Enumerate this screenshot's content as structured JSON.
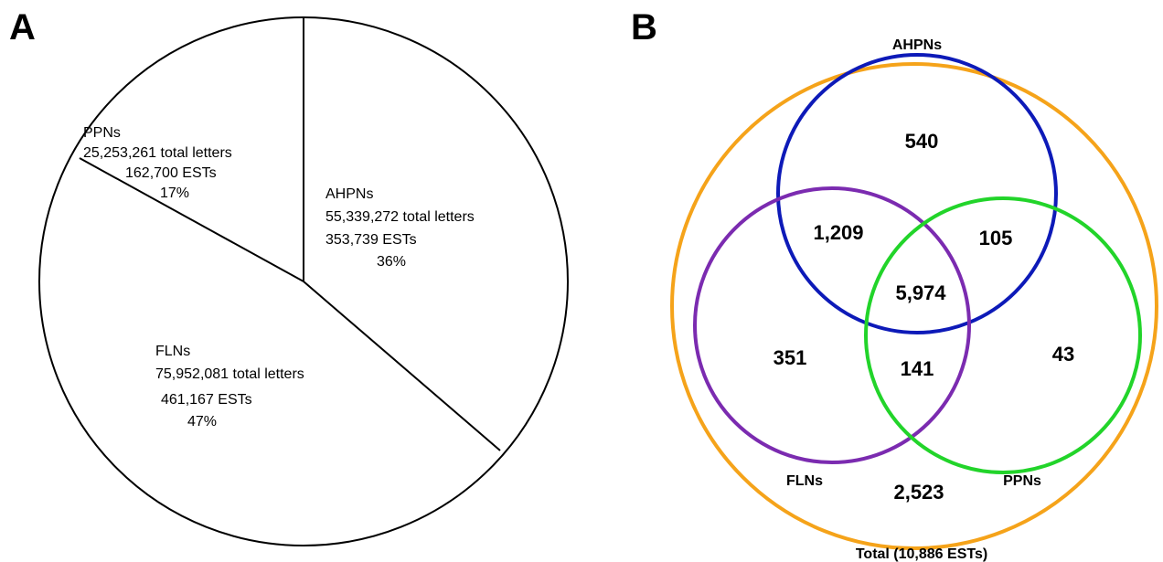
{
  "panels": {
    "a": "A",
    "b": "B"
  },
  "chart_data": [
    {
      "type": "pie",
      "panel": "A",
      "slices": [
        {
          "name": "AHPNs",
          "letters": "55,339,272 total letters",
          "ests": "353,739 ESTs",
          "percent": "36%",
          "value": 36
        },
        {
          "name": "FLNs",
          "letters": "75,952,081 total letters",
          "ests": "461,167 ESTs",
          "percent": "47%",
          "value": 47
        },
        {
          "name": "PPNs",
          "letters": "25,253,261 total letters",
          "ests": "162,700 ESTs",
          "percent": "17%",
          "value": 17
        }
      ]
    },
    {
      "type": "venn",
      "panel": "B",
      "sets": [
        {
          "name": "AHPNs",
          "color": "#0d1ab8"
        },
        {
          "name": "FLNs",
          "color": "#7b2bb0"
        },
        {
          "name": "PPNs",
          "color": "#22d42a"
        }
      ],
      "total": {
        "label": "Total (10,886 ESTs)",
        "color": "#f5a31a"
      },
      "regions": {
        "ahpn_only": "540",
        "ahpn_fln": "1,209",
        "ahpn_ppn": "105",
        "all_three": "5,974",
        "fln_only": "351",
        "fln_ppn": "141",
        "ppn_only": "43",
        "none": "2,523"
      }
    }
  ]
}
